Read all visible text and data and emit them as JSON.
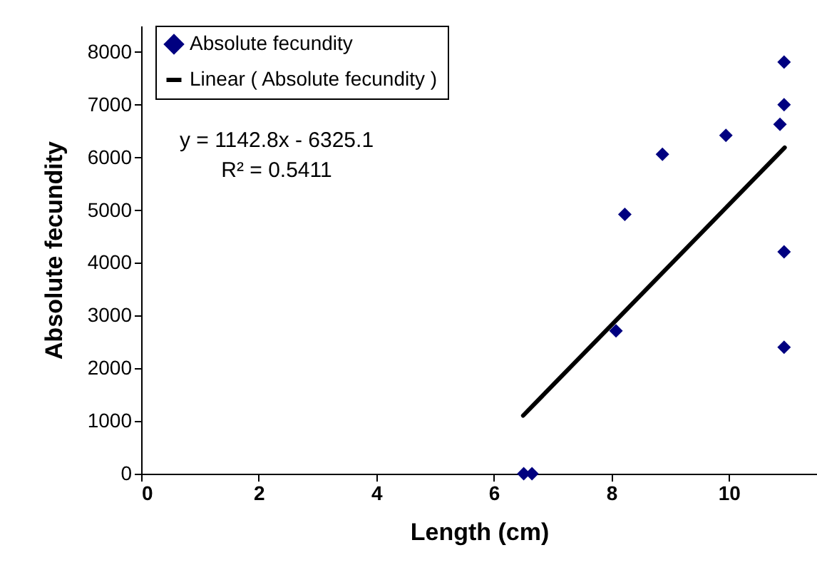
{
  "chart_data": {
    "type": "scatter",
    "xlabel": "Length (cm)",
    "ylabel": "Absolute fecundity",
    "annotations": [
      "y = 1142.8x - 6325.1",
      "R² = 0.5411"
    ],
    "xlim": [
      0,
      11.5
    ],
    "xticks": [
      0,
      2,
      4,
      6,
      8,
      10
    ],
    "ylim": [
      0,
      8500
    ],
    "yticks": [
      0,
      1000,
      2000,
      3000,
      4000,
      5000,
      6000,
      7000,
      8000
    ],
    "grid": false,
    "legend": "top left",
    "series": [
      {
        "name": "Absolute fecundity",
        "marker": "diamond",
        "color": "#000080",
        "x": [
          6.51,
          6.65,
          8.08,
          8.23,
          8.87,
          9.95,
          10.87,
          10.94,
          10.94,
          10.94,
          10.94
        ],
        "values": [
          0,
          0,
          2710,
          4920,
          6060,
          6420,
          6630,
          7000,
          7810,
          4210,
          2400
        ]
      },
      {
        "name": "Linear ( Absolute fecundity )",
        "type": "line",
        "color": "#000000",
        "x": [
          6.5,
          10.95
        ],
        "values": [
          1103,
          6188
        ],
        "marker": "none"
      }
    ]
  }
}
